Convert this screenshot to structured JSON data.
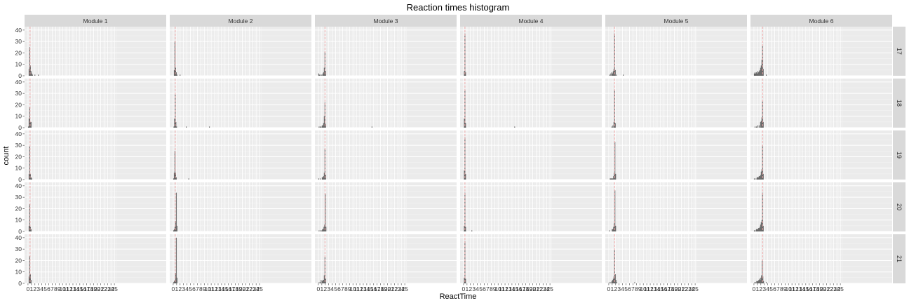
{
  "title": "Reaction times histogram",
  "xlabel": "ReactTime",
  "ylabel": "count",
  "chart_data": {
    "type": "histogram",
    "title": "Reaction times histogram",
    "xlabel": "ReactTime",
    "ylabel": "count",
    "facet_columns": [
      "Module 1",
      "Module 2",
      "Module 3",
      "Module 4",
      "Module 5",
      "Module 6"
    ],
    "facet_rows": [
      "17",
      "18",
      "19",
      "20",
      "21"
    ],
    "x_ticks": [
      "0",
      "1",
      "2",
      "3",
      "4",
      "5",
      "6",
      "7",
      "8",
      "9",
      "10",
      "11",
      "12",
      "13",
      "14",
      "15",
      "16",
      "17",
      "18",
      "19",
      "20",
      "21",
      "22",
      "23",
      "24",
      "25"
    ],
    "xlim": [
      -1,
      40
    ],
    "ylim": [
      0,
      43
    ],
    "y_ticks": [
      0,
      10,
      20,
      30,
      40
    ],
    "grid": true,
    "reference_line_color": "#f4a6a6",
    "bar_color": "#595959",
    "panel_background": "#ebebeb",
    "strip_background": "#d9d9d9",
    "panels": [
      {
        "module": "Module 1",
        "row": "17",
        "ref_x": 0.6,
        "bins": [
          [
            0.3,
            6
          ],
          [
            0.5,
            25
          ],
          [
            0.7,
            9
          ],
          [
            0.9,
            4
          ],
          [
            1.1,
            2
          ],
          [
            1.3,
            1
          ],
          [
            2.0,
            1
          ],
          [
            3.0,
            1
          ]
        ]
      },
      {
        "module": "Module 2",
        "row": "17",
        "ref_x": 0.6,
        "bins": [
          [
            0.3,
            5
          ],
          [
            0.5,
            30
          ],
          [
            0.7,
            7
          ],
          [
            0.9,
            3
          ],
          [
            1.1,
            1
          ],
          [
            2.0,
            1
          ]
        ]
      },
      {
        "module": "Module 3",
        "row": "17",
        "ref_x": 1.9,
        "bins": [
          [
            0.1,
            2
          ],
          [
            0.3,
            1
          ],
          [
            0.6,
            1
          ],
          [
            1.0,
            1
          ],
          [
            1.3,
            2
          ],
          [
            1.5,
            3
          ],
          [
            1.7,
            7
          ],
          [
            1.9,
            21
          ],
          [
            2.1,
            4
          ]
        ]
      },
      {
        "module": "Module 4",
        "row": "17",
        "ref_x": 0.4,
        "bins": [
          [
            0.2,
            4
          ],
          [
            0.4,
            37
          ],
          [
            0.6,
            3
          ]
        ]
      },
      {
        "module": "Module 5",
        "row": "17",
        "ref_x": 1.7,
        "bins": [
          [
            0.3,
            1
          ],
          [
            0.6,
            2
          ],
          [
            0.9,
            3
          ],
          [
            1.1,
            2
          ],
          [
            1.3,
            4
          ],
          [
            1.5,
            6
          ],
          [
            1.7,
            37
          ],
          [
            1.9,
            5
          ],
          [
            2.2,
            1
          ],
          [
            4.2,
            1
          ]
        ]
      },
      {
        "module": "Module 6",
        "row": "17",
        "ref_x": 2.5,
        "bins": [
          [
            0.1,
            2
          ],
          [
            0.3,
            3
          ],
          [
            0.5,
            2
          ],
          [
            0.7,
            3
          ],
          [
            0.9,
            2
          ],
          [
            1.1,
            4
          ],
          [
            1.3,
            3
          ],
          [
            1.5,
            4
          ],
          [
            1.7,
            5
          ],
          [
            1.9,
            7
          ],
          [
            2.1,
            9
          ],
          [
            2.3,
            14
          ],
          [
            2.5,
            26
          ],
          [
            2.7,
            6
          ],
          [
            3.6,
            1
          ]
        ]
      },
      {
        "module": "Module 1",
        "row": "18",
        "ref_x": 0.6,
        "bins": [
          [
            0.1,
            1
          ],
          [
            0.3,
            8
          ],
          [
            0.5,
            18
          ],
          [
            0.7,
            5
          ],
          [
            0.9,
            5
          ]
        ]
      },
      {
        "module": "Module 2",
        "row": "18",
        "ref_x": 0.6,
        "bins": [
          [
            0.2,
            1
          ],
          [
            0.4,
            8
          ],
          [
            0.6,
            29
          ],
          [
            0.8,
            5
          ],
          [
            1.0,
            1
          ],
          [
            3.8,
            1
          ],
          [
            10.5,
            1
          ]
        ]
      },
      {
        "module": "Module 3",
        "row": "18",
        "ref_x": 1.9,
        "bins": [
          [
            0.2,
            1
          ],
          [
            0.5,
            1
          ],
          [
            0.8,
            1
          ],
          [
            1.1,
            2
          ],
          [
            1.3,
            2
          ],
          [
            1.5,
            4
          ],
          [
            1.7,
            10
          ],
          [
            1.9,
            22
          ],
          [
            2.1,
            3
          ],
          [
            15.5,
            1
          ]
        ]
      },
      {
        "module": "Module 4",
        "row": "18",
        "ref_x": 0.4,
        "bins": [
          [
            0.2,
            8
          ],
          [
            0.4,
            33
          ],
          [
            0.6,
            4
          ],
          [
            14.8,
            1
          ]
        ]
      },
      {
        "module": "Module 5",
        "row": "18",
        "ref_x": 1.7,
        "bins": [
          [
            0.9,
            1
          ],
          [
            1.2,
            2
          ],
          [
            1.5,
            5
          ],
          [
            1.7,
            33
          ],
          [
            1.9,
            4
          ]
        ]
      },
      {
        "module": "Module 6",
        "row": "18",
        "ref_x": 2.5,
        "bins": [
          [
            0.3,
            1
          ],
          [
            0.7,
            1
          ],
          [
            1.1,
            2
          ],
          [
            1.5,
            2
          ],
          [
            1.9,
            5
          ],
          [
            2.1,
            6
          ],
          [
            2.3,
            9
          ],
          [
            2.5,
            23
          ],
          [
            2.7,
            5
          ]
        ]
      },
      {
        "module": "Module 1",
        "row": "19",
        "ref_x": 0.6,
        "bins": [
          [
            0.3,
            5
          ],
          [
            0.5,
            29
          ],
          [
            0.7,
            5
          ],
          [
            0.9,
            2
          ],
          [
            1.1,
            1
          ]
        ]
      },
      {
        "module": "Module 2",
        "row": "19",
        "ref_x": 0.6,
        "bins": [
          [
            0.1,
            1
          ],
          [
            0.3,
            6
          ],
          [
            0.5,
            25
          ],
          [
            0.7,
            6
          ],
          [
            0.9,
            2
          ],
          [
            4.5,
            1
          ]
        ]
      },
      {
        "module": "Module 3",
        "row": "19",
        "ref_x": 1.9,
        "bins": [
          [
            0.1,
            1
          ],
          [
            0.5,
            1
          ],
          [
            1.1,
            2
          ],
          [
            1.3,
            2
          ],
          [
            1.5,
            3
          ],
          [
            1.7,
            6
          ],
          [
            1.9,
            27
          ],
          [
            2.1,
            4
          ]
        ]
      },
      {
        "module": "Module 4",
        "row": "19",
        "ref_x": 0.4,
        "bins": [
          [
            0.2,
            8
          ],
          [
            0.4,
            37
          ],
          [
            0.6,
            5
          ]
        ]
      },
      {
        "module": "Module 5",
        "row": "19",
        "ref_x": 1.7,
        "bins": [
          [
            0.4,
            1
          ],
          [
            0.6,
            1
          ],
          [
            0.8,
            1
          ],
          [
            1.0,
            1
          ],
          [
            1.2,
            1
          ],
          [
            1.4,
            3
          ],
          [
            1.6,
            6
          ],
          [
            1.8,
            33
          ],
          [
            2.0,
            5
          ]
        ]
      },
      {
        "module": "Module 6",
        "row": "19",
        "ref_x": 2.5,
        "bins": [
          [
            0.1,
            1
          ],
          [
            0.6,
            1
          ],
          [
            0.9,
            2
          ],
          [
            1.1,
            2
          ],
          [
            1.3,
            2
          ],
          [
            1.5,
            3
          ],
          [
            1.7,
            3
          ],
          [
            1.9,
            4
          ],
          [
            2.1,
            7
          ],
          [
            2.3,
            9
          ],
          [
            2.5,
            30
          ],
          [
            2.7,
            5
          ]
        ]
      },
      {
        "module": "Module 1",
        "row": "20",
        "ref_x": 0.6,
        "bins": [
          [
            0.3,
            5
          ],
          [
            0.5,
            24
          ],
          [
            0.7,
            4
          ],
          [
            0.9,
            2
          ]
        ]
      },
      {
        "module": "Module 2",
        "row": "20",
        "ref_x": 0.6,
        "bins": [
          [
            0.1,
            1
          ],
          [
            0.3,
            2
          ],
          [
            0.5,
            4
          ],
          [
            0.7,
            9
          ],
          [
            0.9,
            34
          ],
          [
            1.1,
            5
          ]
        ]
      },
      {
        "module": "Module 3",
        "row": "20",
        "ref_x": 1.9,
        "bins": [
          [
            0.2,
            1
          ],
          [
            0.6,
            1
          ],
          [
            1.0,
            1
          ],
          [
            1.2,
            2
          ],
          [
            1.4,
            2
          ],
          [
            1.6,
            4
          ],
          [
            1.8,
            6
          ],
          [
            2.0,
            33
          ],
          [
            2.2,
            4
          ]
        ]
      },
      {
        "module": "Module 4",
        "row": "20",
        "ref_x": 0.4,
        "bins": [
          [
            0.2,
            5
          ],
          [
            0.4,
            34
          ],
          [
            0.6,
            4
          ],
          [
            2.4,
            1
          ]
        ]
      },
      {
        "module": "Module 5",
        "row": "20",
        "ref_x": 1.7,
        "bins": [
          [
            0.2,
            1
          ],
          [
            1.0,
            2
          ],
          [
            1.2,
            2
          ],
          [
            1.4,
            4
          ],
          [
            1.6,
            7
          ],
          [
            1.8,
            36
          ],
          [
            2.0,
            5
          ]
        ]
      },
      {
        "module": "Module 6",
        "row": "20",
        "ref_x": 2.5,
        "bins": [
          [
            0.1,
            1
          ],
          [
            0.4,
            1
          ],
          [
            0.7,
            2
          ],
          [
            0.9,
            2
          ],
          [
            1.1,
            2
          ],
          [
            1.3,
            3
          ],
          [
            1.5,
            3
          ],
          [
            1.7,
            4
          ],
          [
            1.9,
            6
          ],
          [
            2.1,
            8
          ],
          [
            2.3,
            10
          ],
          [
            2.5,
            34
          ],
          [
            2.7,
            5
          ]
        ]
      },
      {
        "module": "Module 1",
        "row": "21",
        "ref_x": 0.6,
        "bins": [
          [
            0.3,
            6
          ],
          [
            0.5,
            24
          ],
          [
            0.7,
            8
          ],
          [
            0.9,
            3
          ]
        ]
      },
      {
        "module": "Module 2",
        "row": "21",
        "ref_x": 0.6,
        "bins": [
          [
            0.1,
            1
          ],
          [
            0.3,
            2
          ],
          [
            0.5,
            3
          ],
          [
            0.7,
            9
          ],
          [
            0.9,
            40
          ],
          [
            1.1,
            5
          ]
        ]
      },
      {
        "module": "Module 3",
        "row": "21",
        "ref_x": 1.9,
        "bins": [
          [
            0.2,
            1
          ],
          [
            0.5,
            1
          ],
          [
            0.8,
            3
          ],
          [
            1.1,
            2
          ],
          [
            1.3,
            3
          ],
          [
            1.5,
            3
          ],
          [
            1.7,
            7
          ],
          [
            1.9,
            23
          ],
          [
            2.1,
            4
          ]
        ]
      },
      {
        "module": "Module 4",
        "row": "21",
        "ref_x": 0.4,
        "bins": [
          [
            0.2,
            5
          ],
          [
            0.4,
            37
          ],
          [
            0.6,
            4
          ]
        ]
      },
      {
        "module": "Module 5",
        "row": "21",
        "ref_x": 1.7,
        "bins": [
          [
            0.1,
            1
          ],
          [
            0.6,
            1
          ],
          [
            0.9,
            2
          ],
          [
            1.1,
            3
          ],
          [
            1.3,
            4
          ],
          [
            1.5,
            6
          ],
          [
            1.7,
            29
          ],
          [
            1.9,
            8
          ],
          [
            2.1,
            3
          ],
          [
            2.3,
            1
          ],
          [
            7.5,
            1
          ]
        ]
      },
      {
        "module": "Module 6",
        "row": "21",
        "ref_x": 2.5,
        "bins": [
          [
            0.2,
            1
          ],
          [
            0.5,
            1
          ],
          [
            0.8,
            2
          ],
          [
            1.0,
            2
          ],
          [
            1.2,
            2
          ],
          [
            1.4,
            3
          ],
          [
            1.6,
            4
          ],
          [
            1.8,
            3
          ],
          [
            2.0,
            5
          ],
          [
            2.2,
            7
          ],
          [
            2.4,
            20
          ],
          [
            2.6,
            6
          ],
          [
            2.8,
            2
          ],
          [
            3.6,
            1
          ]
        ]
      }
    ]
  }
}
